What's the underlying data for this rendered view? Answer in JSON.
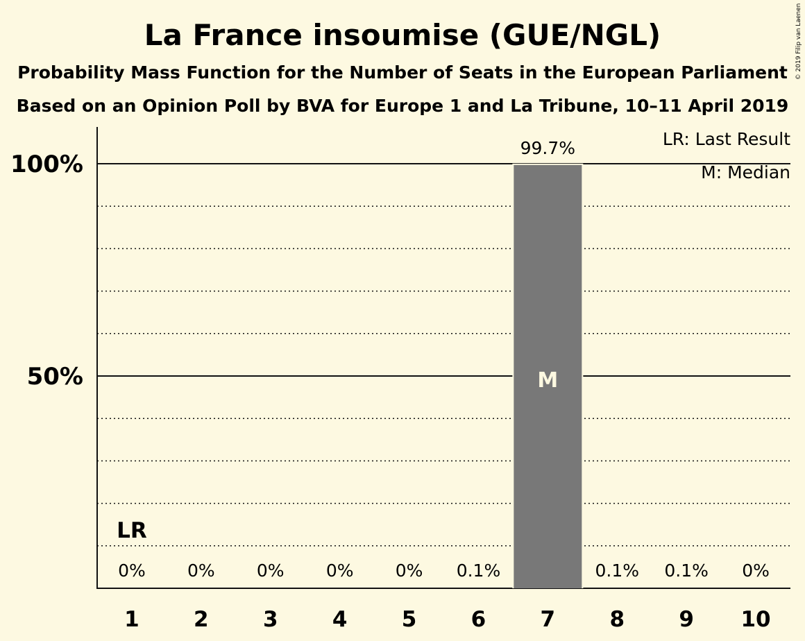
{
  "chart_data": {
    "type": "bar",
    "title": "La France insoumise (GUE/NGL)",
    "subtitle": "Probability Mass Function for the Number of Seats in the European Parliament",
    "subtitle2": "Based on an Opinion Poll by BVA for Europe 1 and La Tribune, 10–11 April 2019",
    "categories": [
      "1",
      "2",
      "3",
      "4",
      "5",
      "6",
      "7",
      "8",
      "9",
      "10"
    ],
    "values": [
      0,
      0,
      0,
      0,
      0,
      0.1,
      99.7,
      0.1,
      0.1,
      0
    ],
    "value_labels": [
      "0%",
      "0%",
      "0%",
      "0%",
      "0%",
      "0.1%",
      "99.7%",
      "0.1%",
      "0.1%",
      "0%"
    ],
    "yticks": [
      {
        "value": 50,
        "label": "50%"
      },
      {
        "value": 100,
        "label": "100%"
      }
    ],
    "ylim": [
      0,
      108
    ],
    "minor_grid_step": 10,
    "bar_color": "#787878",
    "last_result": {
      "category": "1",
      "label": "LR"
    },
    "median": {
      "category": "7",
      "label": "M"
    },
    "legend": [
      "LR: Last Result",
      "M: Median"
    ],
    "legend_position": "top-right"
  },
  "copyright": "© 2019 Filip van Laenen"
}
